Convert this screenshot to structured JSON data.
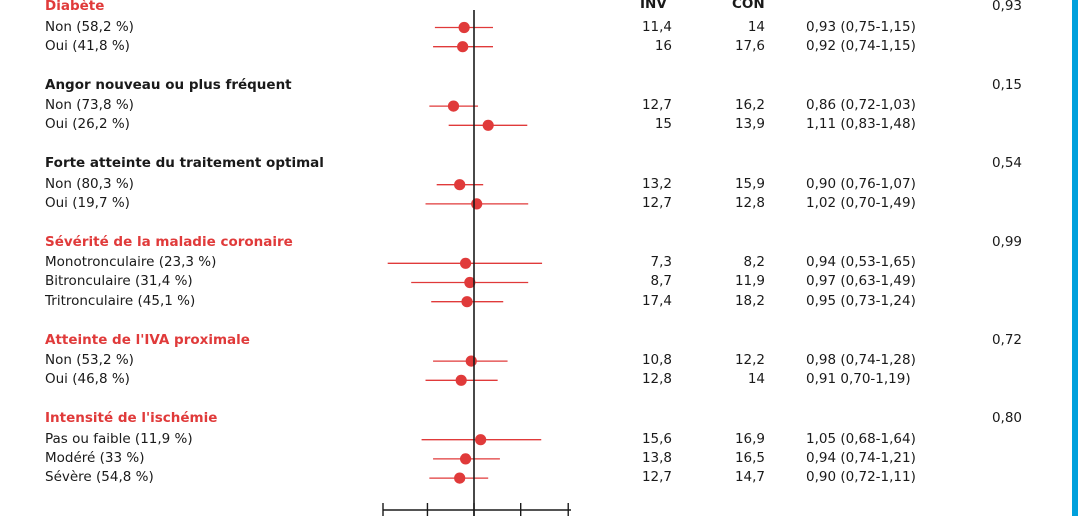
{
  "columns": {
    "inv": "INV",
    "con": "CON"
  },
  "colors": {
    "accent_red": "#e03a3a",
    "border_blue": "#00a0dc",
    "axis": "#1a1a1a"
  },
  "chart_data": {
    "type": "forest",
    "x_scale": "log",
    "xlim": [
      0.5,
      1.8
    ],
    "reference_line": 1.0,
    "rows": [
      {
        "type": "group",
        "label": "Diabète",
        "color": "red",
        "p": "0,93"
      },
      {
        "type": "item",
        "label": "Non (58,2 %)",
        "inv": "11,4",
        "con": "14",
        "hr_text": "0,93 (0,75-1,15)",
        "hr": 0.93,
        "lo": 0.75,
        "hi": 1.15
      },
      {
        "type": "item",
        "label": "Oui (41,8 %)",
        "inv": "16",
        "con": "17,6",
        "hr_text": "0,92 (0,74-1,15)",
        "hr": 0.92,
        "lo": 0.74,
        "hi": 1.15
      },
      {
        "type": "group",
        "label": "Angor nouveau ou plus fréquent",
        "color": "black",
        "p": "0,15"
      },
      {
        "type": "item",
        "label": "Non (73,8 %)",
        "inv": "12,7",
        "con": "16,2",
        "hr_text": "0,86 (0,72-1,03)",
        "hr": 0.86,
        "lo": 0.72,
        "hi": 1.03
      },
      {
        "type": "item",
        "label": "Oui (26,2 %)",
        "inv": "15",
        "con": "13,9",
        "hr_text": "1,11 (0,83-1,48)",
        "hr": 1.11,
        "lo": 0.83,
        "hi": 1.48
      },
      {
        "type": "group",
        "label": "Forte atteinte du traitement optimal",
        "color": "black",
        "p": "0,54"
      },
      {
        "type": "item",
        "label": "Non (80,3 %)",
        "inv": "13,2",
        "con": "15,9",
        "hr_text": "0,90 (0,76-1,07)",
        "hr": 0.9,
        "lo": 0.76,
        "hi": 1.07
      },
      {
        "type": "item",
        "label": "Oui (19,7 %)",
        "inv": "12,7",
        "con": "12,8",
        "hr_text": "1,02 (0,70-1,49)",
        "hr": 1.02,
        "lo": 0.7,
        "hi": 1.49
      },
      {
        "type": "group",
        "label": "Sévérité de la maladie coronaire",
        "color": "red",
        "p": "0,99"
      },
      {
        "type": "item",
        "label": "Monotronculaire (23,3 %)",
        "inv": "7,3",
        "con": "8,2",
        "hr_text": "0,94 (0,53-1,65)",
        "hr": 0.94,
        "lo": 0.53,
        "hi": 1.65
      },
      {
        "type": "item",
        "label": "Bitronculaire (31,4 %)",
        "inv": "8,7",
        "con": "11,9",
        "hr_text": "0,97 (0,63-1,49)",
        "hr": 0.97,
        "lo": 0.63,
        "hi": 1.49
      },
      {
        "type": "item",
        "label": "Tritronculaire (45,1 %)",
        "inv": "17,4",
        "con": "18,2",
        "hr_text": "0,95 (0,73-1,24)",
        "hr": 0.95,
        "lo": 0.73,
        "hi": 1.24
      },
      {
        "type": "group",
        "label": "Atteinte de l'IVA proximale",
        "color": "red",
        "p": "0,72"
      },
      {
        "type": "item",
        "label": "Non (53,2 %)",
        "inv": "10,8",
        "con": "12,2",
        "hr_text": "0,98 (0,74-1,28)",
        "hr": 0.98,
        "lo": 0.74,
        "hi": 1.28
      },
      {
        "type": "item",
        "label": "Oui (46,8 %)",
        "inv": "12,8",
        "con": "14",
        "hr_text": "0,91 0,70-1,19)",
        "hr": 0.91,
        "lo": 0.7,
        "hi": 1.19
      },
      {
        "type": "group",
        "label": "Intensité de l'ischémie",
        "color": "red",
        "p": "0,80"
      },
      {
        "type": "item",
        "label": "Pas ou faible (11,9 %)",
        "inv": "15,6",
        "con": "16,9",
        "hr_text": "1,05 (0,68-1,64)",
        "hr": 1.05,
        "lo": 0.68,
        "hi": 1.64
      },
      {
        "type": "item",
        "label": "Modéré (33 %)",
        "inv": "13,8",
        "con": "16,5",
        "hr_text": "0,94 (0,74-1,21)",
        "hr": 0.94,
        "lo": 0.74,
        "hi": 1.21
      },
      {
        "type": "item",
        "label": "Sévère (54,8 %)",
        "inv": "12,7",
        "con": "14,7",
        "hr_text": "0,90 (0,72-1,11)",
        "hr": 0.9,
        "lo": 0.72,
        "hi": 1.11
      }
    ]
  }
}
